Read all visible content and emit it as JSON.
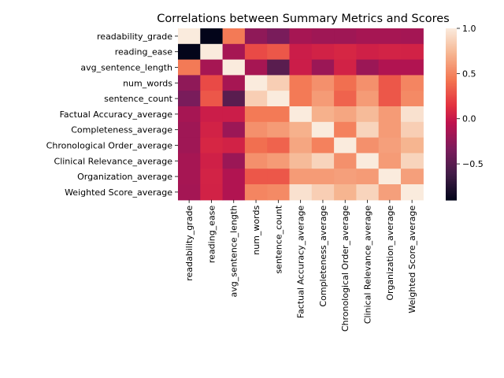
{
  "chart_data": {
    "type": "heatmap",
    "title": "Correlations between Summary Metrics and Scores",
    "xlabel": "",
    "ylabel": "",
    "labels": [
      "readability_grade",
      "reading_ease",
      "avg_sentence_length",
      "num_words",
      "sentence_count",
      "Factual Accuracy_average",
      "Completeness_average",
      "Chronological Order_average",
      "Clinical Relevance_average",
      "Organization_average",
      "Weighted Score_average"
    ],
    "values": [
      [
        1.0,
        -0.9,
        0.45,
        -0.25,
        -0.35,
        -0.15,
        -0.18,
        -0.18,
        -0.15,
        -0.15,
        -0.16
      ],
      [
        -0.9,
        1.0,
        -0.15,
        0.25,
        0.3,
        0.02,
        0.05,
        0.08,
        0.04,
        0.06,
        0.05
      ],
      [
        0.45,
        -0.15,
        1.0,
        -0.15,
        -0.5,
        0.02,
        -0.2,
        0.05,
        -0.2,
        -0.1,
        -0.1
      ],
      [
        -0.25,
        0.25,
        -0.15,
        1.0,
        0.85,
        0.45,
        0.55,
        0.4,
        0.55,
        0.3,
        0.5
      ],
      [
        -0.35,
        0.3,
        -0.5,
        0.85,
        1.0,
        0.45,
        0.6,
        0.35,
        0.6,
        0.3,
        0.52
      ],
      [
        -0.15,
        0.02,
        0.02,
        0.45,
        0.45,
        1.0,
        0.7,
        0.65,
        0.75,
        0.6,
        0.95
      ],
      [
        -0.18,
        0.05,
        -0.2,
        0.55,
        0.6,
        0.7,
        1.0,
        0.48,
        0.88,
        0.6,
        0.85
      ],
      [
        -0.18,
        0.08,
        0.05,
        0.4,
        0.35,
        0.65,
        0.48,
        1.0,
        0.55,
        0.62,
        0.72
      ],
      [
        -0.15,
        0.04,
        -0.2,
        0.55,
        0.6,
        0.75,
        0.88,
        0.55,
        1.0,
        0.6,
        0.88
      ],
      [
        -0.15,
        0.06,
        -0.1,
        0.3,
        0.3,
        0.6,
        0.6,
        0.62,
        0.6,
        1.0,
        0.62
      ],
      [
        -0.16,
        0.05,
        -0.1,
        0.5,
        0.52,
        0.95,
        0.85,
        0.72,
        0.88,
        0.62,
        1.0
      ]
    ],
    "vmin": -0.9,
    "vmax": 1.0,
    "colormap": "rocket",
    "colorbar_ticks": [
      -0.5,
      0.0,
      0.5,
      1.0
    ],
    "colorbar_tick_labels": [
      "−0.5",
      "0.0",
      "0.5",
      "1.0"
    ],
    "grid": false,
    "legend": "colorbar-right"
  }
}
